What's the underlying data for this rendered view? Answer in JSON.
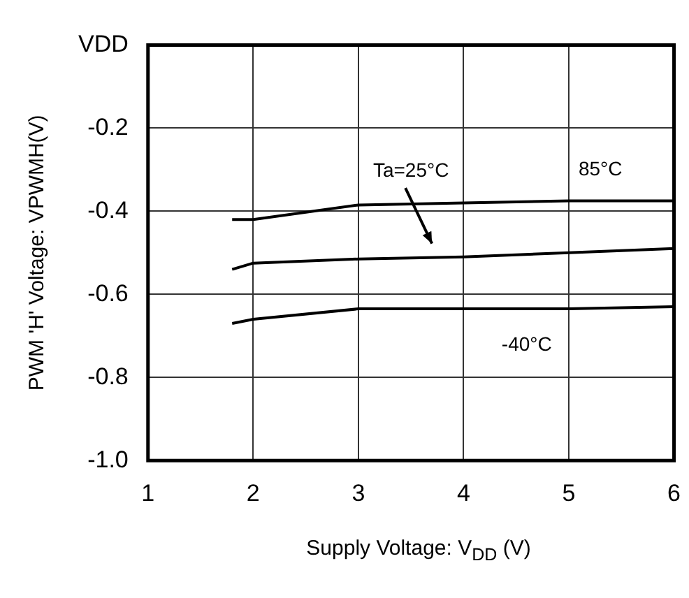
{
  "chart_data": {
    "type": "line",
    "xlabel": "Supply Voltage: V$_{DD}$ (V)",
    "ylabel": "PWM 'H' Voltage: VPWMH(V)",
    "xlim": [
      1,
      6
    ],
    "xticks": [
      1,
      2,
      3,
      4,
      5,
      6
    ],
    "ylim": [
      -1.0,
      0
    ],
    "yticks": [
      {
        "value": -1.0,
        "label": "-1.0"
      },
      {
        "value": -0.8,
        "label": "-0.8"
      },
      {
        "value": -0.6,
        "label": "-0.6"
      },
      {
        "value": -0.4,
        "label": "-0.4"
      },
      {
        "value": -0.2,
        "label": "-0.2"
      },
      {
        "value": 0,
        "label": "VDD"
      }
    ],
    "grid": true,
    "legend": false,
    "marker": "none",
    "line_style": "solid",
    "series": [
      {
        "name": "85°C",
        "color": "#000000",
        "x": [
          1.8,
          2,
          3,
          4,
          5,
          6
        ],
        "values": [
          -0.42,
          -0.42,
          -0.385,
          -0.38,
          -0.375,
          -0.375
        ]
      },
      {
        "name": "Ta=25°C",
        "color": "#000000",
        "x": [
          1.8,
          2,
          3,
          4,
          5,
          6
        ],
        "values": [
          -0.54,
          -0.525,
          -0.515,
          -0.51,
          -0.5,
          -0.49
        ]
      },
      {
        "name": "-40°C",
        "color": "#000000",
        "x": [
          1.8,
          2,
          3,
          4,
          5,
          6
        ],
        "values": [
          -0.67,
          -0.66,
          -0.635,
          -0.635,
          -0.635,
          -0.63
        ]
      }
    ]
  }
}
